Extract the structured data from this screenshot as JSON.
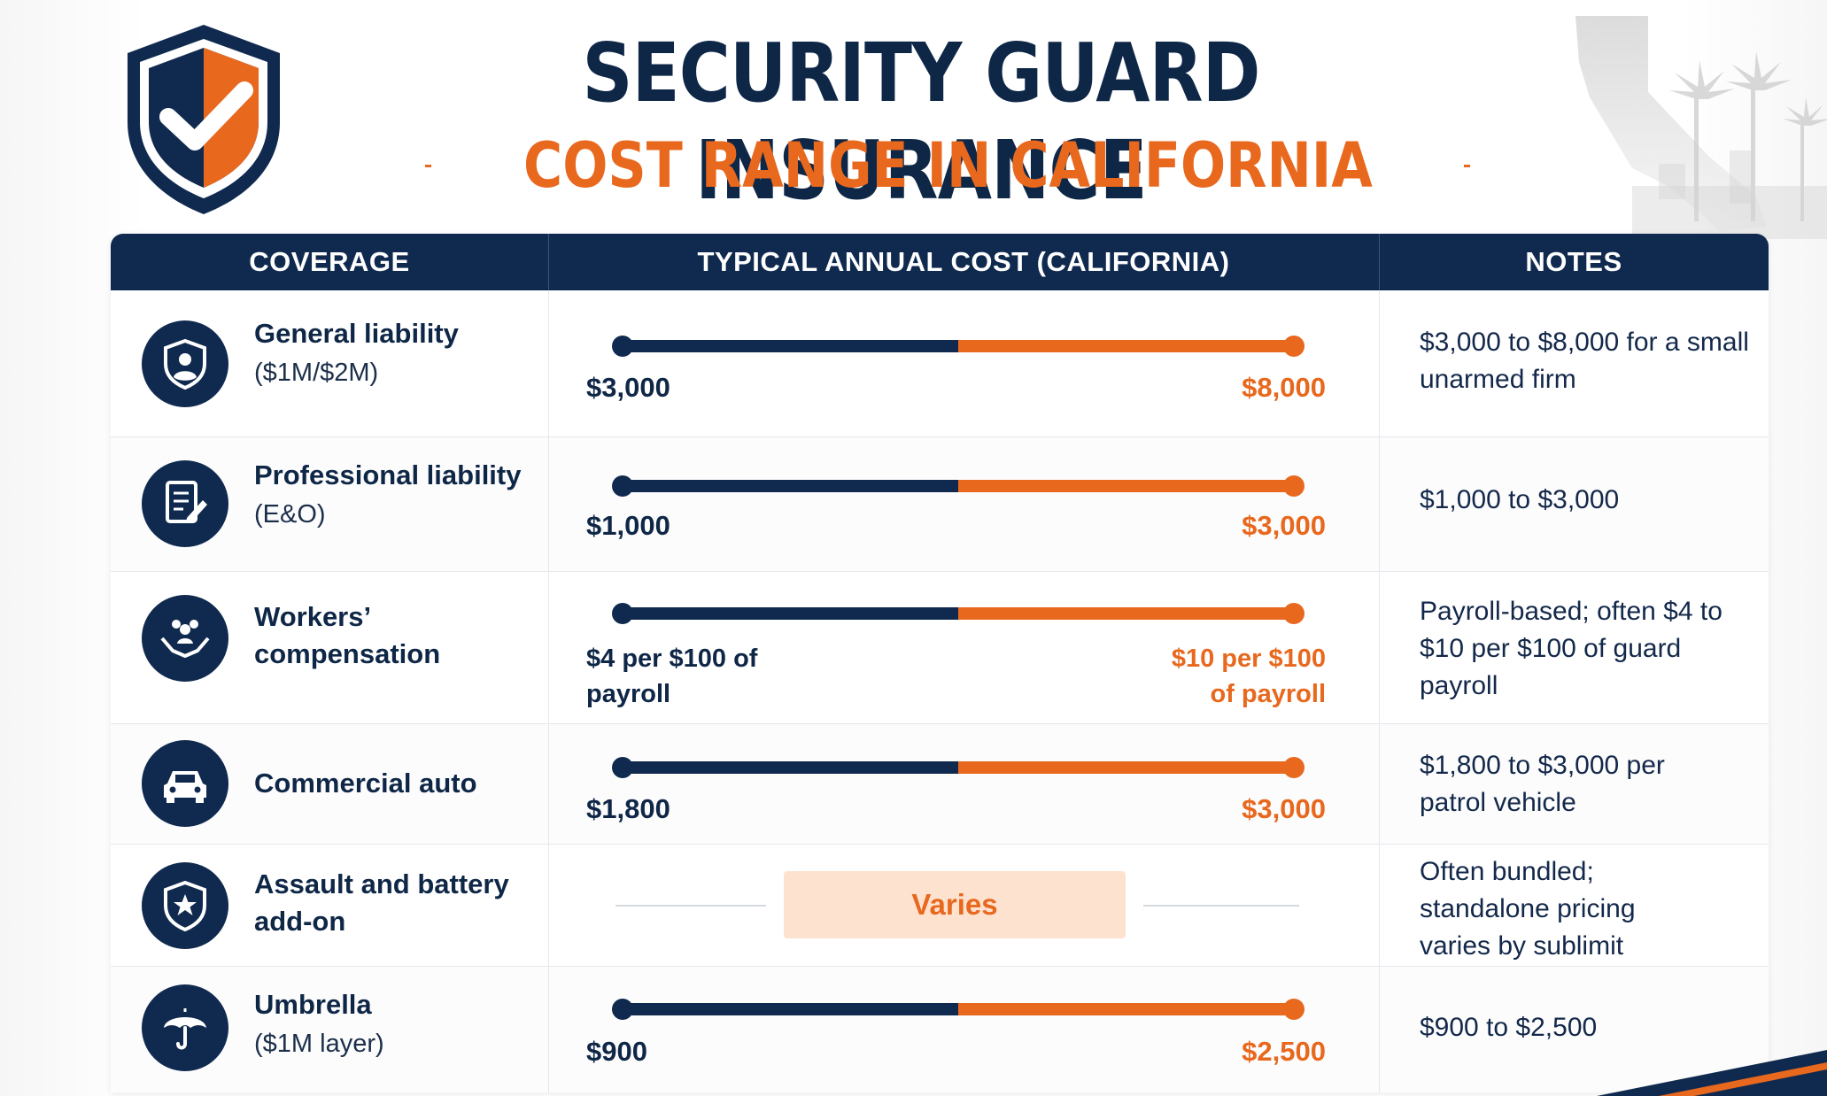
{
  "header": {
    "title": "SECURITY GUARD INSURANCE",
    "subtitle": "COST RANGE IN CALIFORNIA"
  },
  "colors": {
    "navy": "#102a4f",
    "orange": "#e8681e",
    "varies_bg": "#fde2cf"
  },
  "table": {
    "columns": [
      "COVERAGE",
      "TYPICAL ANNUAL COST (CALIFORNIA)",
      "NOTES"
    ],
    "rows": [
      {
        "icon": "shield-person-icon",
        "name": "General liability",
        "sub": "($1M/$2M)",
        "low": "$3,000",
        "high": "$8,000",
        "note": "$3,000 to $8,000 for a small unarmed firm"
      },
      {
        "icon": "document-pen-icon",
        "name": "Professional liability",
        "sub": "(E&O)",
        "low": "$1,000",
        "high": "$3,000",
        "note": "$1,000 to $3,000"
      },
      {
        "icon": "hands-people-icon",
        "name": "Workers’ compensation",
        "sub": "",
        "low": "$4 per $100 of payroll",
        "high": "$10 per $100 of payroll",
        "note": "Payroll-based; often $4 to $10 per $100 of guard payroll"
      },
      {
        "icon": "car-icon",
        "name": "Commercial auto",
        "sub": "",
        "low": "$1,800",
        "high": "$3,000",
        "note": "$1,800 to $3,000 per patrol vehicle"
      },
      {
        "icon": "shield-star-icon",
        "name": "Assault and battery add-on",
        "sub": "",
        "range_label": "Varies",
        "note": "Often bundled; standalone pricing varies by sublimit"
      },
      {
        "icon": "umbrella-icon",
        "name": "Umbrella",
        "sub": "($1M layer)",
        "low": "$900",
        "high": "$2,500",
        "note": "$900 to $2,500"
      }
    ]
  }
}
